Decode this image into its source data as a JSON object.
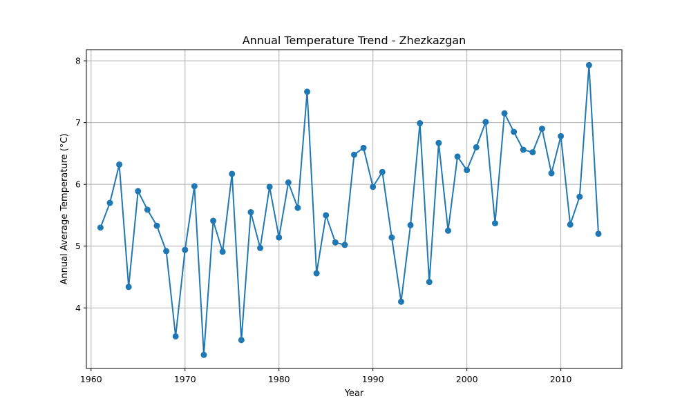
{
  "chart_data": {
    "type": "line",
    "title": "Annual Temperature Trend - Zhezkazgan",
    "xlabel": "Year",
    "ylabel": "Annual Average Temperature (°C)",
    "xlim": [
      1959.5,
      2016.5
    ],
    "ylim": [
      3.02,
      8.18
    ],
    "xticks": [
      1960,
      1970,
      1980,
      1990,
      2000,
      2010
    ],
    "yticks": [
      4,
      5,
      6,
      7,
      8
    ],
    "grid": true,
    "marker": "circle",
    "color": "#1f77b4",
    "x": [
      1961,
      1962,
      1963,
      1964,
      1965,
      1966,
      1967,
      1968,
      1969,
      1970,
      1971,
      1972,
      1973,
      1974,
      1975,
      1976,
      1977,
      1978,
      1979,
      1980,
      1981,
      1982,
      1983,
      1984,
      1985,
      1986,
      1987,
      1988,
      1989,
      1990,
      1991,
      1992,
      1993,
      1994,
      1995,
      1996,
      1997,
      1998,
      1999,
      2000,
      2001,
      2002,
      2003,
      2004,
      2005,
      2006,
      2007,
      2008,
      2009,
      2010,
      2011,
      2012,
      2013,
      2014
    ],
    "y": [
      5.3,
      5.7,
      6.32,
      4.34,
      5.89,
      5.59,
      5.33,
      4.92,
      3.54,
      4.94,
      5.97,
      3.24,
      5.41,
      4.91,
      6.17,
      3.48,
      5.55,
      4.97,
      5.96,
      5.14,
      6.03,
      5.62,
      7.5,
      4.56,
      5.5,
      5.06,
      5.02,
      6.48,
      6.59,
      5.96,
      6.2,
      5.14,
      4.1,
      5.34,
      6.99,
      4.42,
      6.67,
      5.25,
      6.45,
      6.23,
      6.6,
      7.01,
      5.37,
      7.15,
      6.85,
      6.56,
      6.52,
      6.9,
      6.18,
      6.78,
      5.35,
      5.8,
      7.93,
      5.2
    ]
  }
}
